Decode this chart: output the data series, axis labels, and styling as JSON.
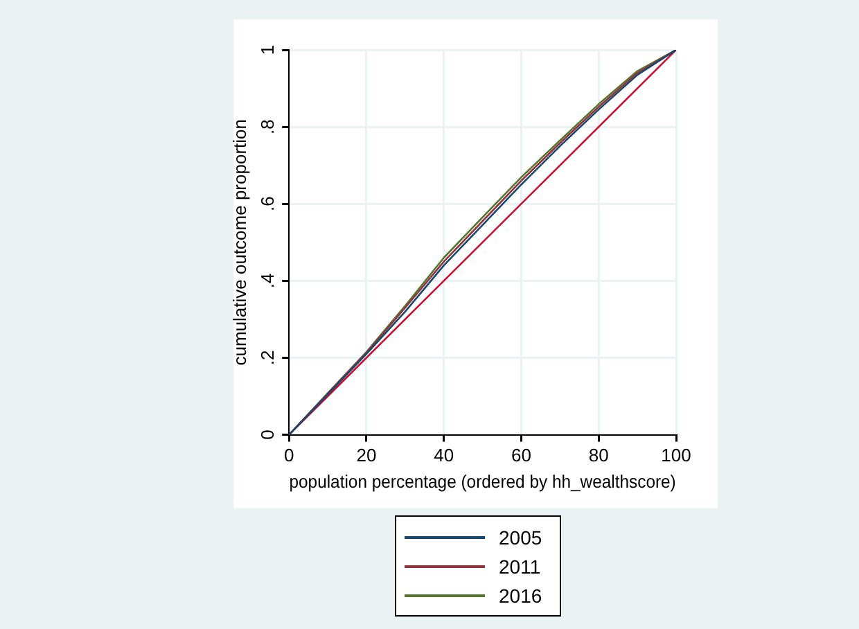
{
  "chart_data": {
    "type": "line",
    "xlabel": "population percentage (ordered by hh_wealthscore)",
    "ylabel": "cumulative outcome proportion",
    "xlim": [
      0,
      100
    ],
    "ylim": [
      0,
      1
    ],
    "xticks": [
      0,
      20,
      40,
      60,
      80,
      100
    ],
    "yticks": [
      {
        "value": 0,
        "label": "0"
      },
      {
        "value": 0.2,
        "label": ".2"
      },
      {
        "value": 0.4,
        "label": ".4"
      },
      {
        "value": 0.6,
        "label": ".6"
      },
      {
        "value": 0.8,
        "label": ".8"
      },
      {
        "value": 1,
        "label": "1"
      }
    ],
    "grid": true,
    "legend": "bottom",
    "marker": "none",
    "line_style": "solid",
    "series": [
      {
        "name": "2005",
        "color": "#1a476f",
        "x": [
          0,
          10,
          20,
          30,
          40,
          50,
          60,
          70,
          80,
          90,
          100
        ],
        "values": [
          0,
          0.105,
          0.21,
          0.32,
          0.44,
          0.545,
          0.65,
          0.75,
          0.845,
          0.935,
          1
        ]
      },
      {
        "name": "2011",
        "color": "#90353b",
        "x": [
          0,
          10,
          20,
          30,
          40,
          50,
          60,
          70,
          80,
          90,
          100
        ],
        "values": [
          0,
          0.107,
          0.213,
          0.33,
          0.45,
          0.555,
          0.66,
          0.758,
          0.852,
          0.94,
          1
        ]
      },
      {
        "name": "2016",
        "color": "#55752f",
        "x": [
          0,
          10,
          20,
          30,
          40,
          50,
          60,
          70,
          80,
          90,
          100
        ],
        "values": [
          0,
          0.108,
          0.215,
          0.335,
          0.46,
          0.565,
          0.669,
          0.765,
          0.859,
          0.945,
          1
        ]
      },
      {
        "color": "#c8102e",
        "x": [
          0,
          100
        ],
        "values": [
          0,
          1
        ]
      }
    ]
  }
}
